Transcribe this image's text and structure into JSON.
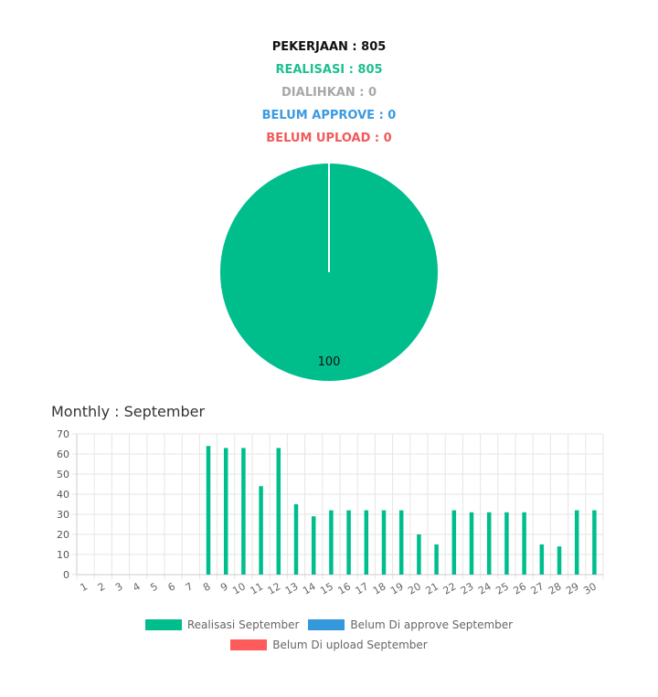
{
  "stats": {
    "pekerjaan": "PEKERJAAN : 805",
    "realisasi": "REALISASI : 805",
    "dialihkan": "DIALIHKAN : 0",
    "belum_approve": "BELUM APPROVE : 0",
    "belum_upload": "BELUM UPLOAD : 0"
  },
  "colors": {
    "realisasi": "#00be8c",
    "approve": "#3498db",
    "upload": "#ff5b5b",
    "grid": "#e6e6e6"
  },
  "monthly_title": "Monthly : September",
  "chart_data": [
    {
      "type": "pie",
      "slices": [
        {
          "name": "Realisasi",
          "value": 100
        }
      ],
      "labels": [
        "100"
      ]
    },
    {
      "type": "bar",
      "categories": [
        "1",
        "2",
        "3",
        "4",
        "5",
        "6",
        "7",
        "8",
        "9",
        "10",
        "11",
        "12",
        "13",
        "14",
        "15",
        "16",
        "17",
        "18",
        "19",
        "20",
        "21",
        "22",
        "23",
        "24",
        "25",
        "26",
        "27",
        "28",
        "29",
        "30"
      ],
      "series": [
        {
          "name": "Realisasi September",
          "values": [
            0,
            0,
            0,
            0,
            0,
            0,
            0,
            64,
            63,
            63,
            44,
            63,
            35,
            29,
            32,
            32,
            32,
            32,
            32,
            20,
            15,
            32,
            31,
            31,
            31,
            31,
            15,
            14,
            32,
            32
          ]
        },
        {
          "name": "Belum Di approve September",
          "values": [
            0,
            0,
            0,
            0,
            0,
            0,
            0,
            0,
            0,
            0,
            0,
            0,
            0,
            0,
            0,
            0,
            0,
            0,
            0,
            0,
            0,
            0,
            0,
            0,
            0,
            0,
            0,
            0,
            0,
            0
          ]
        },
        {
          "name": "Belum Di upload September",
          "values": [
            0,
            0,
            0,
            0,
            0,
            0,
            0,
            0,
            0,
            0,
            0,
            0,
            0,
            0,
            0,
            0,
            0,
            0,
            0,
            0,
            0,
            0,
            0,
            0,
            0,
            0,
            0,
            0,
            0,
            0
          ]
        }
      ],
      "yticks": [
        "0",
        "10",
        "20",
        "30",
        "40",
        "50",
        "60",
        "70"
      ],
      "ylim": [
        0,
        70
      ],
      "grid": true,
      "legend": "bottom"
    }
  ]
}
